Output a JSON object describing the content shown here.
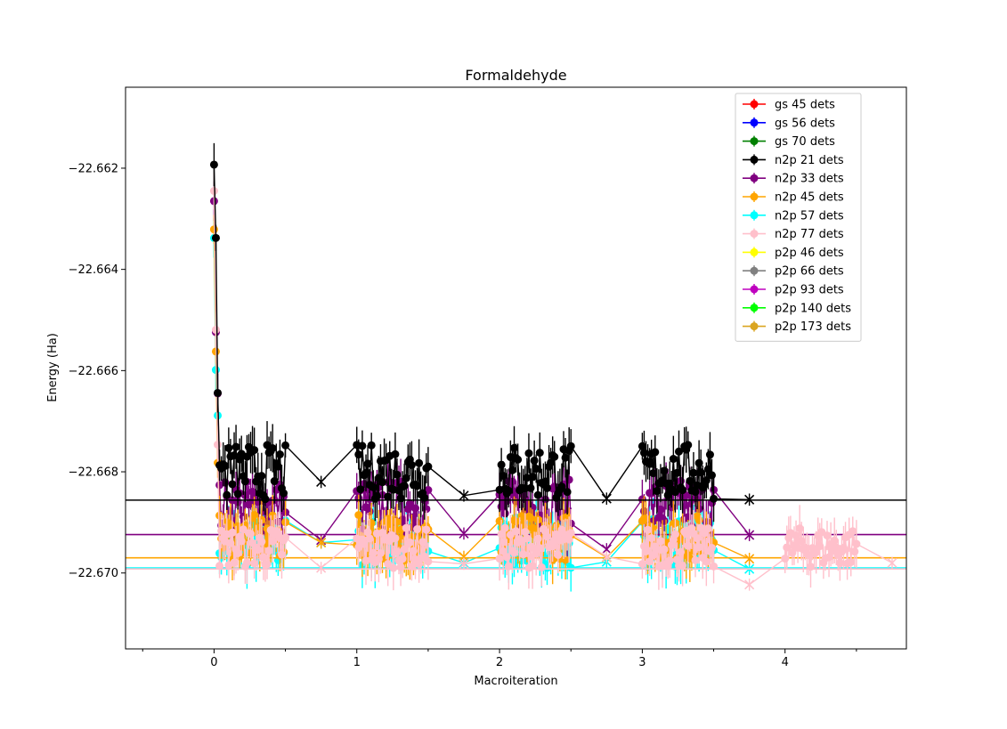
{
  "chart_data": {
    "type": "scatter",
    "title": "Formaldehyde",
    "xlabel": "Macroiteration",
    "ylabel": "Energy (Ha)",
    "xlim": [
      -0.62,
      4.85
    ],
    "ylim": [
      -22.6715,
      -22.6604
    ],
    "xticks": [
      0,
      1,
      2,
      3,
      4
    ],
    "xtick_labels": [
      "0",
      "1",
      "2",
      "3",
      "4"
    ],
    "yticks": [
      -22.67,
      -22.668,
      -22.666,
      -22.664,
      -22.662
    ],
    "ytick_labels": [
      "−22.670",
      "−22.668",
      "−22.666",
      "−22.664",
      "−22.662"
    ],
    "grid": false,
    "legend_position": "upper-right",
    "series": [
      {
        "name": "gs 45 dets",
        "color": "#ff0000"
      },
      {
        "name": "gs 56 dets",
        "color": "#0000ff"
      },
      {
        "name": "gs 70 dets",
        "color": "#008000"
      },
      {
        "name": "n2p 21 dets",
        "color": "#000000",
        "hline": -22.66856,
        "first": -22.66193,
        "center": -22.668,
        "spread": 0.00055,
        "err": 0.0004,
        "tail": [
          {
            "x": 0.75,
            "y": -22.6682
          },
          {
            "x": 1.75,
            "y": -22.66847
          },
          {
            "x": 2.75,
            "y": -22.66853
          },
          {
            "x": 3.75,
            "y": -22.66855
          }
        ]
      },
      {
        "name": "n2p 33 dets",
        "color": "#800080",
        "hline": -22.66924,
        "first": -22.66265,
        "center": -22.6687,
        "spread": 0.00055,
        "err": 0.0004,
        "tail": [
          {
            "x": 0.75,
            "y": -22.66935
          },
          {
            "x": 1.75,
            "y": -22.66922
          },
          {
            "x": 2.75,
            "y": -22.66953
          },
          {
            "x": 3.75,
            "y": -22.66925
          }
        ]
      },
      {
        "name": "n2p 45 dets",
        "color": "#ffa500",
        "hline": -22.6697,
        "first": -22.66321,
        "center": -22.6693,
        "spread": 0.00045,
        "err": 0.0004,
        "tail": [
          {
            "x": 0.75,
            "y": -22.6694
          },
          {
            "x": 1.75,
            "y": -22.66968
          },
          {
            "x": 2.75,
            "y": -22.66969
          },
          {
            "x": 3.75,
            "y": -22.66972
          }
        ]
      },
      {
        "name": "n2p 57 dets",
        "color": "#00ffff",
        "hline": -22.6699,
        "first": -22.66338,
        "center": -22.6694,
        "spread": 0.0005,
        "err": 0.0004,
        "tail": [
          {
            "x": 0.75,
            "y": -22.6694
          },
          {
            "x": 1.75,
            "y": -22.6698
          },
          {
            "x": 2.75,
            "y": -22.66978
          },
          {
            "x": 3.75,
            "y": -22.66992
          }
        ]
      },
      {
        "name": "n2p 77 dets",
        "color": "#ffc0cb",
        "hline": -22.66992,
        "first": -22.66245,
        "center": -22.6695,
        "spread": 0.0004,
        "err": 0.0004,
        "tail": [
          {
            "x": 0.75,
            "y": -22.6699
          },
          {
            "x": 1.75,
            "y": -22.66982
          },
          {
            "x": 2.75,
            "y": -22.66968
          },
          {
            "x": 3.75,
            "y": -22.67023
          },
          {
            "x": 4.75,
            "y": -22.6698
          }
        ]
      },
      {
        "name": "p2p 46 dets",
        "color": "#ffff00"
      },
      {
        "name": "p2p 66 dets",
        "color": "#808080"
      },
      {
        "name": "p2p 93 dets",
        "color": "#bf00bf"
      },
      {
        "name": "p2p 140 dets",
        "color": "#00ff00"
      },
      {
        "name": "p2p 173 dets",
        "color": "#daa520"
      }
    ]
  }
}
